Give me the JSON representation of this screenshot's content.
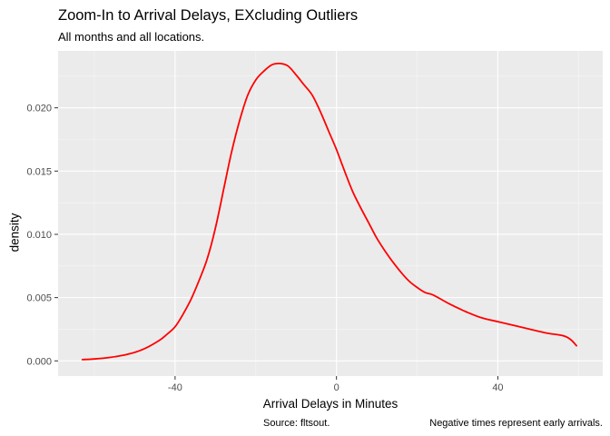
{
  "chart_data": {
    "type": "line",
    "title": "Zoom-In to Arrival Delays, EXcluding Outliers",
    "subtitle": "All months and all locations.",
    "xlabel": "Arrival Delays in Minutes",
    "ylabel": "density",
    "caption_left": "Source: fltsout.",
    "caption_right": "Negative times represent early arrivals.",
    "xlim": [
      -69,
      66
    ],
    "ylim": [
      -0.0012,
      0.0245
    ],
    "x_ticks": [
      -40,
      0,
      40
    ],
    "x_tick_labels": [
      "-40",
      "0",
      "40"
    ],
    "y_ticks": [
      0.0,
      0.005,
      0.01,
      0.015,
      0.02
    ],
    "y_tick_labels": [
      "0.000",
      "0.005",
      "0.010",
      "0.015",
      "0.020"
    ],
    "grid": true,
    "series": [
      {
        "color": "#ff0000",
        "x": [
          -63,
          -60,
          -56,
          -52,
          -48,
          -44,
          -42,
          -40,
          -38,
          -36,
          -34,
          -32,
          -30,
          -28,
          -26,
          -24,
          -22,
          -20,
          -18,
          -16,
          -14,
          -12,
          -10,
          -8,
          -6,
          -4,
          -2,
          0,
          2,
          4,
          6,
          8,
          10,
          12,
          14,
          16,
          18,
          20,
          22,
          24,
          28,
          32,
          36,
          40,
          44,
          48,
          52,
          56,
          58,
          59.5
        ],
        "y": [
          0.0001,
          0.00015,
          0.00028,
          0.0005,
          0.0009,
          0.0016,
          0.0021,
          0.0027,
          0.0037,
          0.0049,
          0.0064,
          0.0081,
          0.0105,
          0.0135,
          0.0165,
          0.019,
          0.021,
          0.0222,
          0.0229,
          0.0234,
          0.0235,
          0.0233,
          0.0226,
          0.0218,
          0.021,
          0.0197,
          0.0182,
          0.0167,
          0.015,
          0.0134,
          0.0121,
          0.0109,
          0.0097,
          0.0087,
          0.0078,
          0.007,
          0.0063,
          0.0058,
          0.0054,
          0.0052,
          0.0045,
          0.0039,
          0.0034,
          0.0031,
          0.0028,
          0.0025,
          0.0022,
          0.002,
          0.0017,
          0.0012
        ]
      }
    ]
  }
}
